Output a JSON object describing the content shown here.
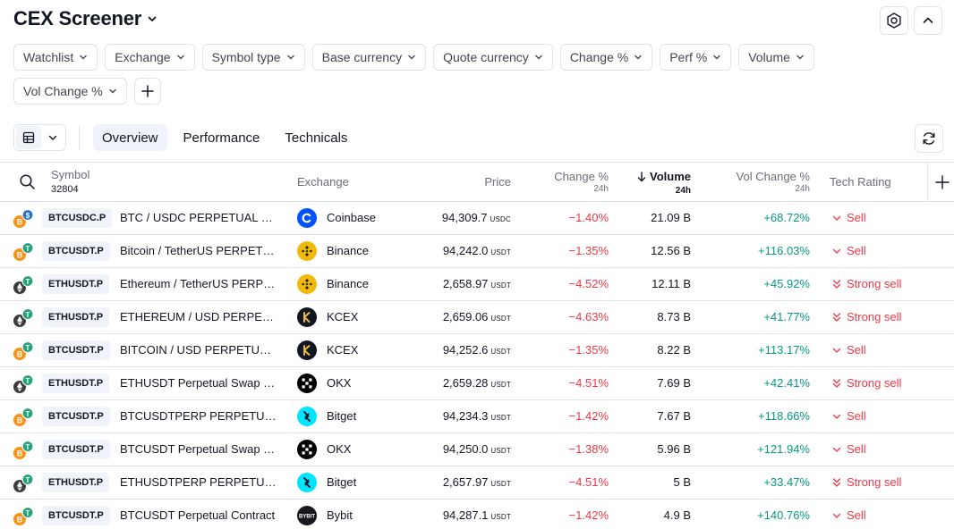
{
  "header": {
    "title": "CEX Screener"
  },
  "filters": [
    {
      "label": "Watchlist"
    },
    {
      "label": "Exchange"
    },
    {
      "label": "Symbol type"
    },
    {
      "label": "Base currency"
    },
    {
      "label": "Quote currency"
    },
    {
      "label": "Change %"
    },
    {
      "label": "Perf %"
    },
    {
      "label": "Volume"
    },
    {
      "label": "Vol Change %"
    }
  ],
  "tabs": [
    {
      "label": "Overview",
      "active": true
    },
    {
      "label": "Performance",
      "active": false
    },
    {
      "label": "Technicals",
      "active": false
    }
  ],
  "table": {
    "symbol_header": "Symbol",
    "symbol_count": "32804",
    "columns": {
      "exchange": "Exchange",
      "price": "Price",
      "change": "Change %",
      "change_sub": "24h",
      "volume": "Volume",
      "volume_sub": "24h",
      "volchange": "Vol Change %",
      "volchange_sub": "24h",
      "rating": "Tech Rating"
    },
    "rows": [
      {
        "coin": "btc",
        "quote": "usdc",
        "ticker": "BTCUSDC.P",
        "name": "BTC / USDC PERPETUAL CONTRACT",
        "exchange": "Coinbase",
        "exlogo": "coinbase",
        "price": "94,309.7",
        "unit": "USDC",
        "change": "−1.40%",
        "volume": "21.09 B",
        "volchange": "+68.72%",
        "rating": "Sell",
        "strong": false
      },
      {
        "coin": "btc",
        "quote": "usdt",
        "ticker": "BTCUSDT.P",
        "name": "Bitcoin / TetherUS PERPETUAL CONTRACT",
        "exchange": "Binance",
        "exlogo": "binance",
        "price": "94,242.0",
        "unit": "USDT",
        "change": "−1.35%",
        "volume": "12.56 B",
        "volchange": "+116.03%",
        "rating": "Sell",
        "strong": false
      },
      {
        "coin": "eth",
        "quote": "usdt",
        "ticker": "ETHUSDT.P",
        "name": "Ethereum / TetherUS PERPETUAL CONTRACT",
        "exchange": "Binance",
        "exlogo": "binance",
        "price": "2,658.97",
        "unit": "USDT",
        "change": "−4.52%",
        "volume": "12.11 B",
        "volchange": "+45.92%",
        "rating": "Strong sell",
        "strong": true
      },
      {
        "coin": "eth",
        "quote": "usdt",
        "ticker": "ETHUSDT.P",
        "name": "ETHEREUM / USD PERPETUAL CONTRACT",
        "exchange": "KCEX",
        "exlogo": "kcex",
        "price": "2,659.06",
        "unit": "USDT",
        "change": "−4.63%",
        "volume": "8.73 B",
        "volchange": "+41.77%",
        "rating": "Strong sell",
        "strong": true
      },
      {
        "coin": "btc",
        "quote": "usdt",
        "ticker": "BTCUSDT.P",
        "name": "BITCOIN / USD PERPETUAL CONTRACT",
        "exchange": "KCEX",
        "exlogo": "kcex",
        "price": "94,252.6",
        "unit": "USDT",
        "change": "−1.35%",
        "volume": "8.22 B",
        "volchange": "+113.17%",
        "rating": "Sell",
        "strong": false
      },
      {
        "coin": "eth",
        "quote": "usdt",
        "ticker": "ETHUSDT.P",
        "name": "ETHUSDT Perpetual Swap Contract",
        "exchange": "OKX",
        "exlogo": "okx",
        "price": "2,659.28",
        "unit": "USDT",
        "change": "−4.51%",
        "volume": "7.69 B",
        "volchange": "+42.41%",
        "rating": "Strong sell",
        "strong": true
      },
      {
        "coin": "btc",
        "quote": "usdt",
        "ticker": "BTCUSDT.P",
        "name": "BTCUSDTPERP PERPETUAL CONTRACT",
        "exchange": "Bitget",
        "exlogo": "bitget",
        "price": "94,234.3",
        "unit": "USDT",
        "change": "−1.42%",
        "volume": "7.67 B",
        "volchange": "+118.66%",
        "rating": "Sell",
        "strong": false
      },
      {
        "coin": "btc",
        "quote": "usdt",
        "ticker": "BTCUSDT.P",
        "name": "BTCUSDT Perpetual Swap Contract",
        "exchange": "OKX",
        "exlogo": "okx",
        "price": "94,250.0",
        "unit": "USDT",
        "change": "−1.38%",
        "volume": "5.96 B",
        "volchange": "+121.94%",
        "rating": "Sell",
        "strong": false
      },
      {
        "coin": "eth",
        "quote": "usdt",
        "ticker": "ETHUSDT.P",
        "name": "ETHUSDTPERP PERPETUAL CONTRACT",
        "exchange": "Bitget",
        "exlogo": "bitget",
        "price": "2,657.97",
        "unit": "USDT",
        "change": "−4.51%",
        "volume": "5 B",
        "volchange": "+33.47%",
        "rating": "Strong sell",
        "strong": true
      },
      {
        "coin": "btc",
        "quote": "usdt",
        "ticker": "BTCUSDT.P",
        "name": "BTCUSDT Perpetual Contract",
        "exchange": "Bybit",
        "exlogo": "bybit",
        "price": "94,287.1",
        "unit": "USDT",
        "change": "−1.42%",
        "volume": "4.9 B",
        "volchange": "+140.76%",
        "rating": "Sell",
        "strong": false
      }
    ]
  },
  "colors": {
    "negative": "#f23645",
    "positive": "#089981",
    "chip_border": "#e0e3eb",
    "active_bg": "#f0f3fa"
  },
  "icons": [
    "chevron-down-icon",
    "settings-icon",
    "chevron-up-icon",
    "plus-icon",
    "table-view-icon",
    "refresh-icon",
    "search-icon",
    "sort-down-icon",
    "sell-icon",
    "strong-sell-icon"
  ]
}
